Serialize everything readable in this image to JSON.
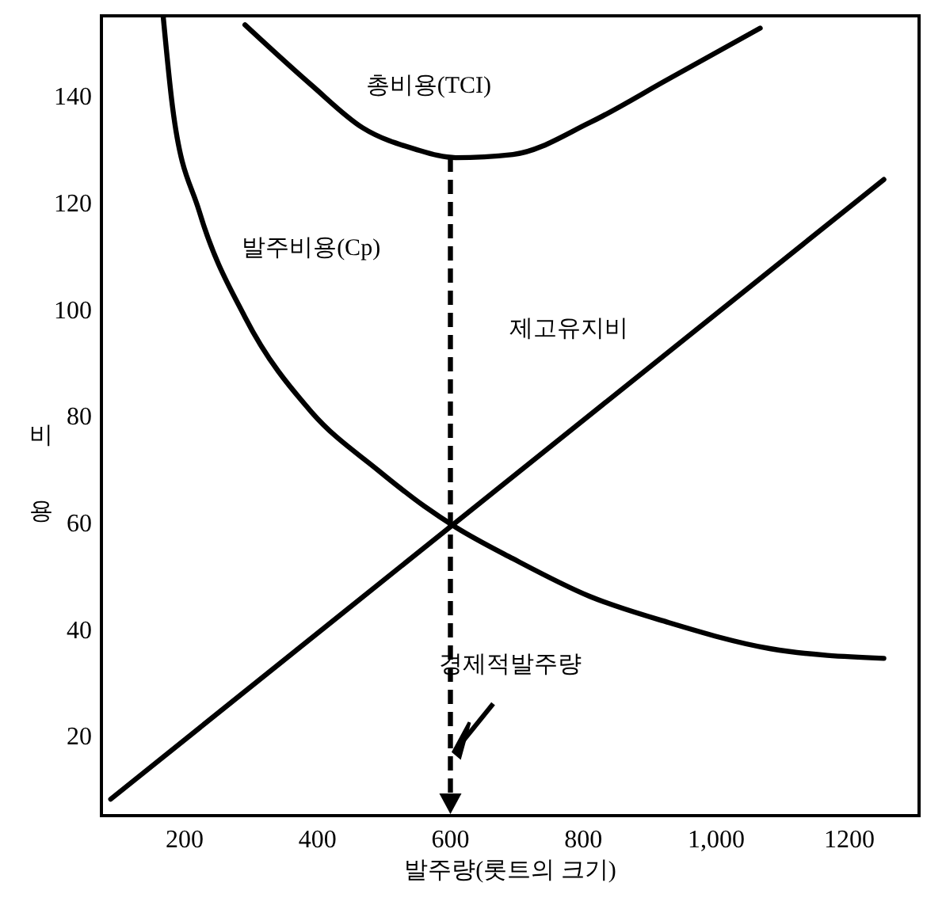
{
  "chart_data": {
    "type": "line",
    "xlabel": "발주량(롯트의 크기)",
    "ylabel": "비용",
    "xlim": [
      75,
      1305
    ],
    "ylim": [
      5,
      155
    ],
    "xticks": [
      200,
      400,
      600,
      800,
      {
        "value": 1000,
        "label": "1,000"
      },
      1200
    ],
    "yticks": [
      20,
      40,
      60,
      80,
      100,
      120,
      140
    ],
    "grid": false,
    "legend": false,
    "marker": "none",
    "line_style": "solid",
    "series": [
      {
        "name": "총비용(TCI)",
        "color": "#000000",
        "x": [
          291,
          391,
          468,
          547,
          608,
          694,
          810,
          926,
          1066
        ],
        "values": [
          153.3,
          142,
          134,
          130,
          128.4,
          129,
          135,
          143,
          152.7
        ]
      },
      {
        "name": "발주비용(Cp)",
        "color": "#000000",
        "x": [
          168,
          182,
          222,
          291,
          391,
          491,
          561,
          608,
          694,
          810,
          926,
          1082,
          1252
        ],
        "values": [
          154.8,
          137.9,
          118.4,
          98.5,
          80.7,
          69.8,
          63,
          59.1,
          53.2,
          46.1,
          41.3,
          36.3,
          34.5
        ]
      },
      {
        "name": "제고유지비",
        "color": "#000000",
        "x": [
          89,
          608,
          1252
        ],
        "values": [
          8.1,
          60,
          124.3
        ]
      }
    ],
    "ref_lines": [
      {
        "axis": "x",
        "value": 600,
        "label": "경제적발주량",
        "color": "#000000",
        "line_style": "dashed"
      }
    ]
  }
}
